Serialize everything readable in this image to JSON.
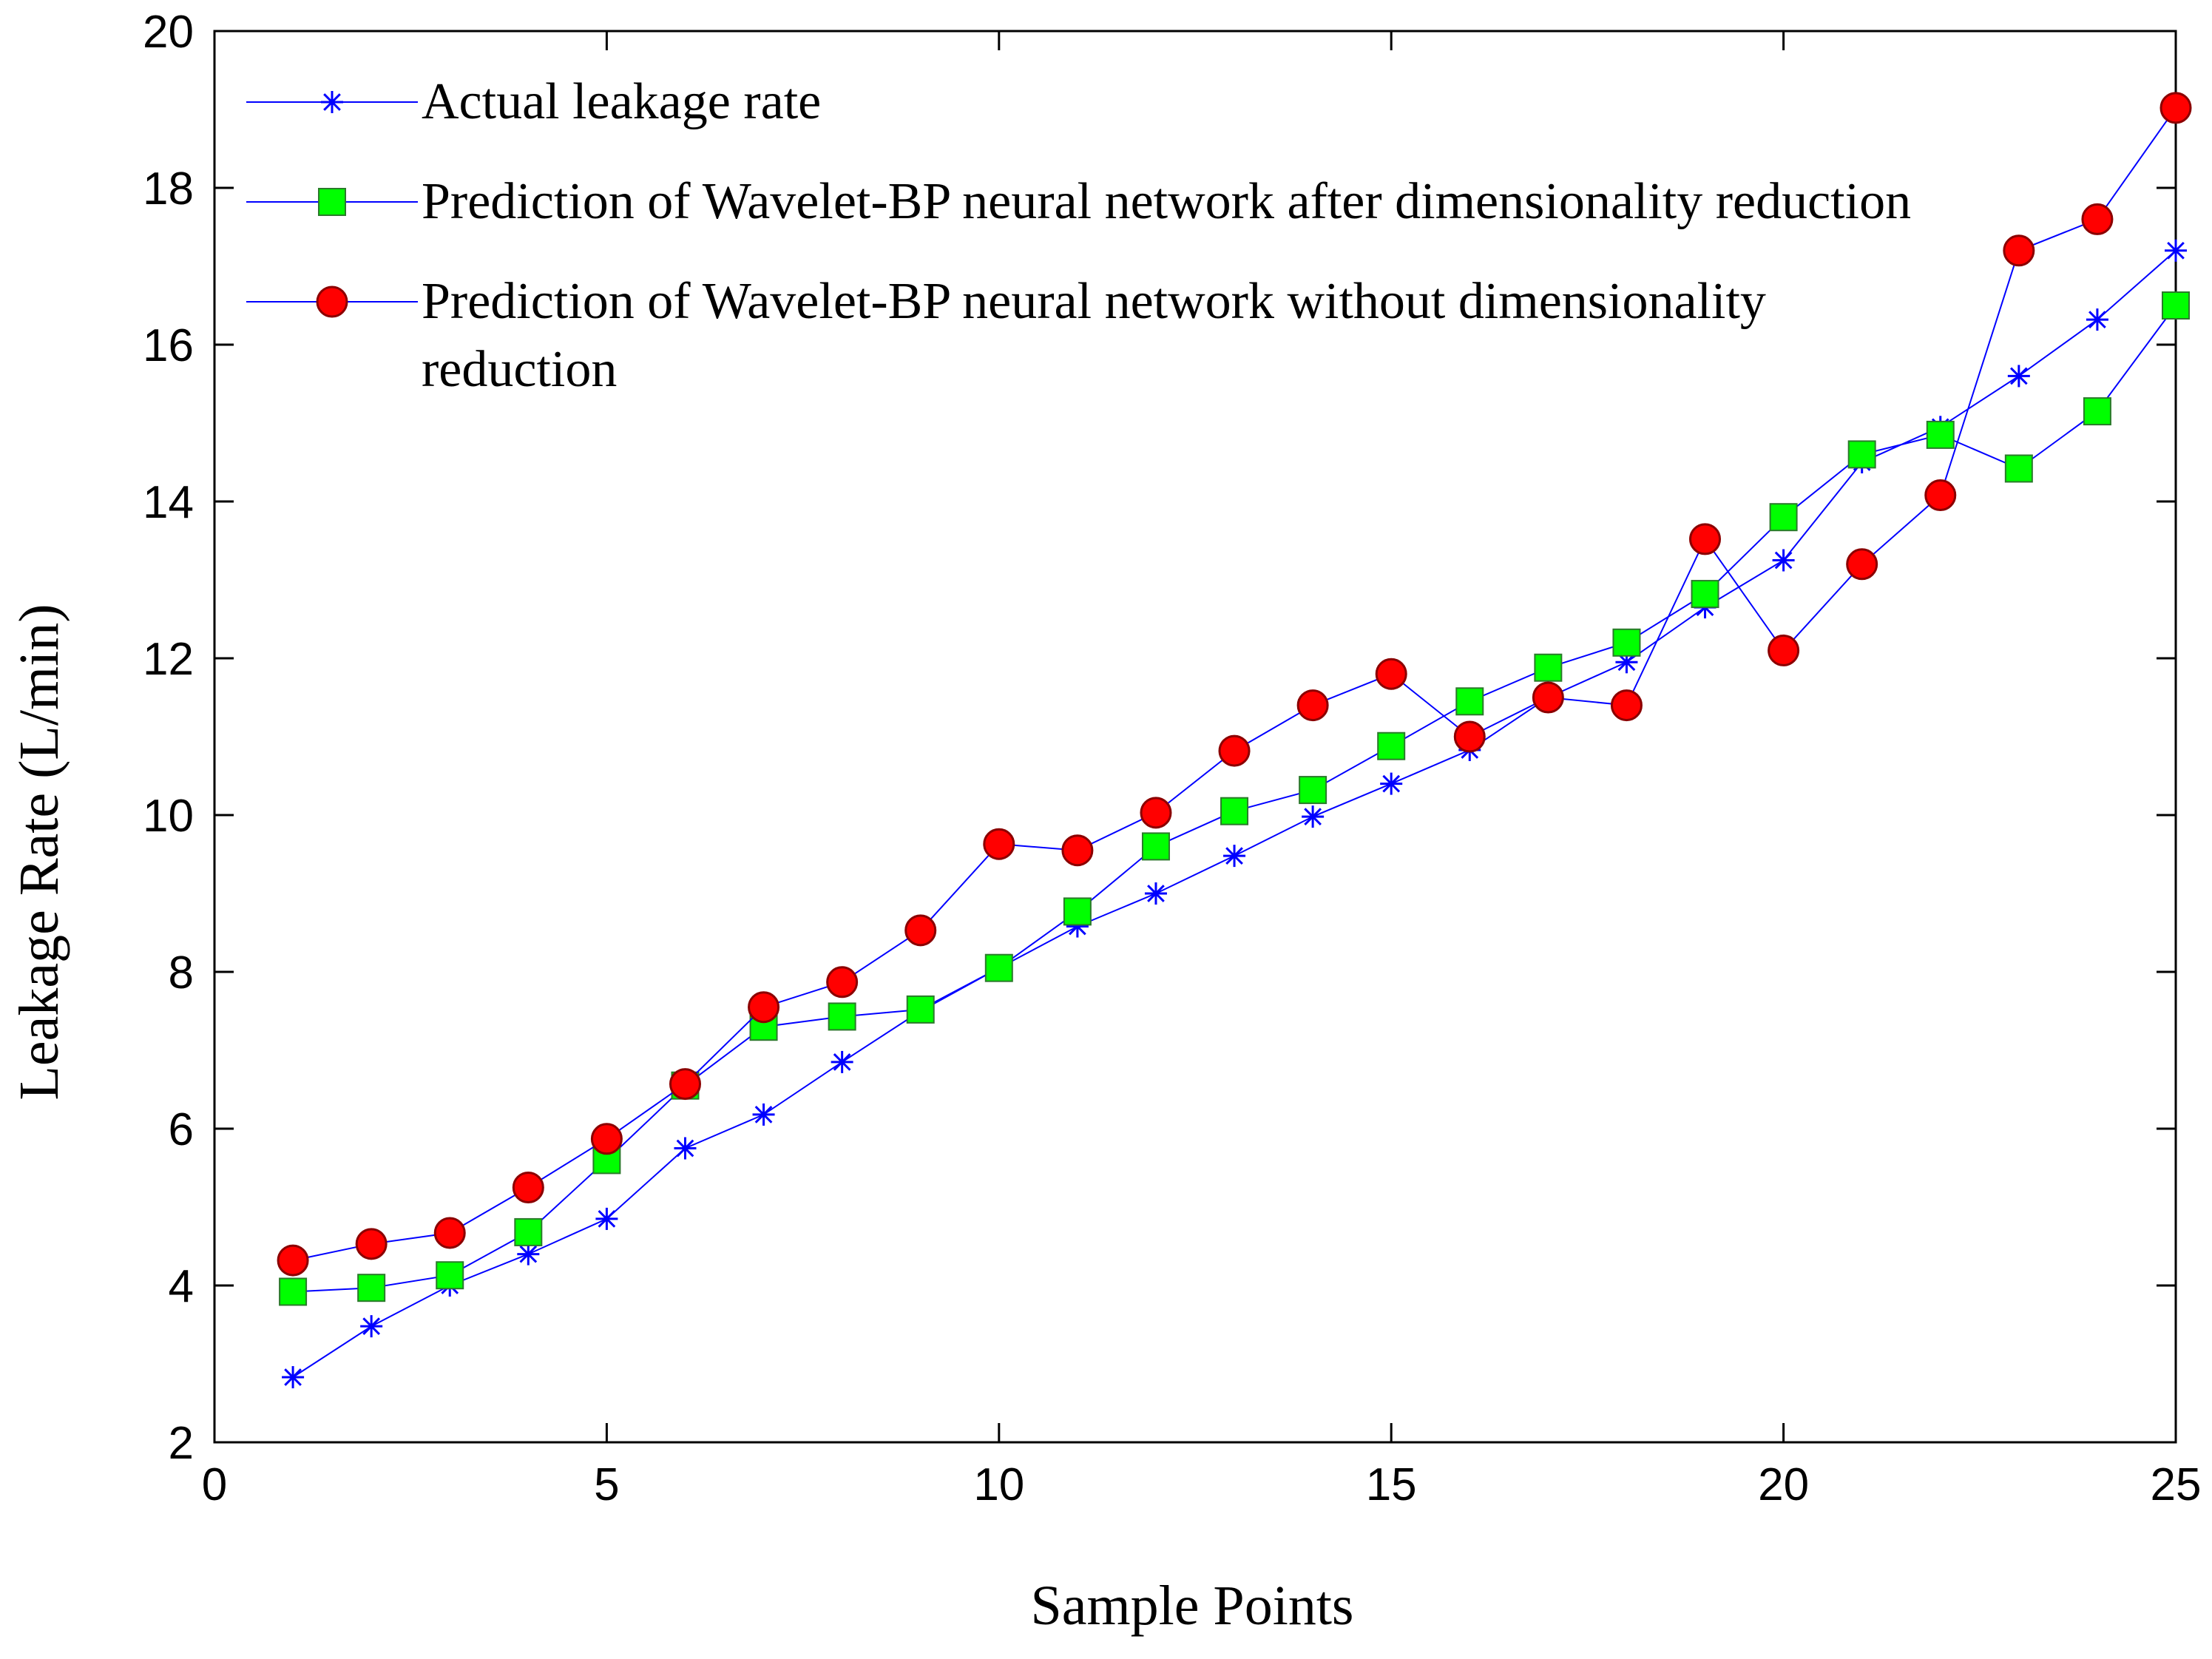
{
  "chart_data": {
    "type": "line",
    "title": "",
    "xlabel": "Sample Points",
    "ylabel": "Leakage Rate (L/min)",
    "xlim": [
      0,
      25
    ],
    "ylim": [
      2,
      20
    ],
    "xticks": [
      0,
      5,
      10,
      15,
      20,
      25
    ],
    "yticks": [
      2,
      4,
      6,
      8,
      10,
      12,
      14,
      16,
      18,
      20
    ],
    "grid": false,
    "legend_position": "top-left",
    "x": [
      1,
      2,
      3,
      4,
      5,
      6,
      7,
      8,
      9,
      10,
      11,
      12,
      13,
      14,
      15,
      16,
      17,
      18,
      19,
      20,
      21,
      22,
      23,
      24,
      25
    ],
    "series": [
      {
        "name": "Actual leakage rate",
        "marker": "asterisk",
        "line_color": "#0000ff",
        "marker_color": "#0000ff",
        "values": [
          2.83,
          3.48,
          4.0,
          4.4,
          4.85,
          5.75,
          6.18,
          6.85,
          7.5,
          8.05,
          8.58,
          9.0,
          9.48,
          9.98,
          10.4,
          10.83,
          11.5,
          11.95,
          12.65,
          13.25,
          14.5,
          14.95,
          15.6,
          16.32,
          17.2
        ]
      },
      {
        "name": "Prediction of Wavelet-BP neural network after dimensionality reduction",
        "marker": "square",
        "line_color": "#0000ff",
        "marker_color": "#00ff00",
        "values": [
          3.92,
          3.97,
          4.13,
          4.68,
          5.6,
          6.55,
          7.3,
          7.43,
          7.52,
          8.05,
          8.77,
          9.6,
          10.05,
          10.32,
          10.88,
          11.45,
          11.88,
          12.2,
          12.82,
          13.8,
          14.6,
          14.85,
          14.42,
          15.15,
          16.5
        ]
      },
      {
        "name": "Prediction of Wavelet-BP neural network without dimensionality reduction",
        "name_lines": [
          "Prediction of Wavelet-BP neural network without dimensionality",
          "reduction"
        ],
        "marker": "circle",
        "line_color": "#0000ff",
        "marker_color": "#ff0000",
        "values": [
          4.32,
          4.53,
          4.67,
          5.25,
          5.87,
          6.57,
          7.55,
          7.87,
          8.53,
          9.63,
          9.55,
          10.03,
          10.82,
          11.4,
          11.8,
          11.0,
          11.5,
          11.4,
          13.52,
          12.1,
          13.2,
          14.08,
          17.2,
          17.6,
          19.02
        ]
      }
    ]
  }
}
